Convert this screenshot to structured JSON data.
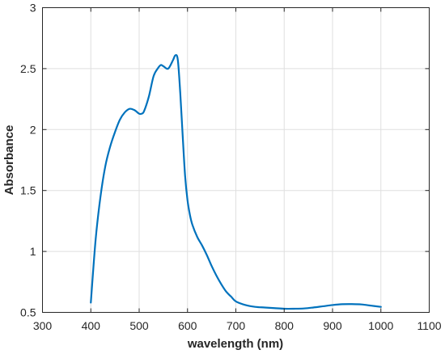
{
  "chart_data": {
    "type": "line",
    "title": "",
    "xlabel": "wavelength (nm)",
    "ylabel": "Absorbance",
    "xlim": [
      300,
      1100
    ],
    "ylim": [
      0.5,
      3
    ],
    "xticks": [
      300,
      400,
      500,
      600,
      700,
      800,
      900,
      1000,
      1100
    ],
    "yticks": [
      0.5,
      1,
      1.5,
      2,
      2.5,
      3
    ],
    "ytick_labels": [
      "0.5",
      "1",
      "1.5",
      "2",
      "2.5",
      "3"
    ],
    "grid": true,
    "legend": "none",
    "series": [
      {
        "color": "#0072bd",
        "x": [
          400,
          410,
          420,
          430,
          440,
          450,
          460,
          470,
          480,
          490,
          500,
          505,
          510,
          520,
          530,
          540,
          545,
          550,
          560,
          570,
          575,
          580,
          585,
          590,
          595,
          600,
          605,
          610,
          620,
          630,
          640,
          650,
          660,
          670,
          680,
          690,
          700,
          720,
          740,
          760,
          780,
          800,
          820,
          840,
          860,
          880,
          900,
          920,
          940,
          960,
          980,
          1000
        ],
        "y": [
          0.58,
          1.1,
          1.45,
          1.7,
          1.86,
          1.98,
          2.08,
          2.14,
          2.17,
          2.16,
          2.13,
          2.13,
          2.15,
          2.27,
          2.44,
          2.51,
          2.53,
          2.52,
          2.5,
          2.57,
          2.61,
          2.57,
          2.3,
          1.95,
          1.62,
          1.42,
          1.3,
          1.22,
          1.12,
          1.05,
          0.97,
          0.88,
          0.8,
          0.73,
          0.67,
          0.63,
          0.59,
          0.56,
          0.545,
          0.54,
          0.535,
          0.53,
          0.53,
          0.532,
          0.54,
          0.55,
          0.56,
          0.567,
          0.568,
          0.565,
          0.555,
          0.545
        ]
      }
    ]
  }
}
